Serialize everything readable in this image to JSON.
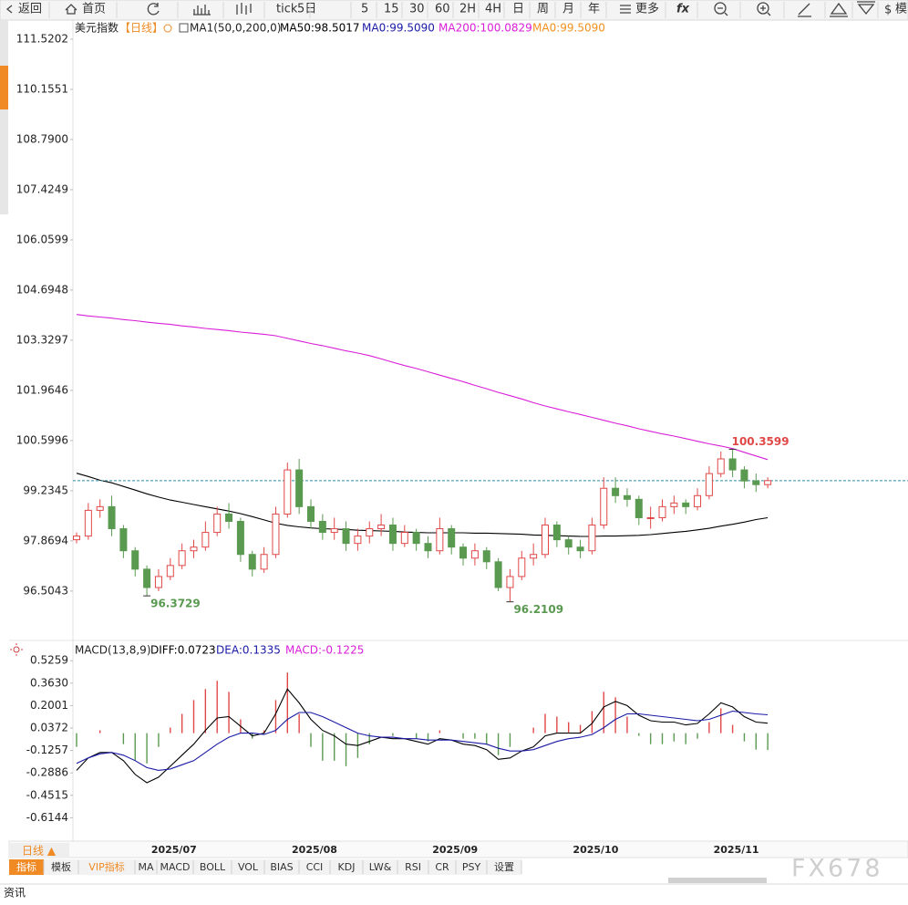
{
  "toolbar": {
    "items": [
      "返回",
      "首页",
      "tick",
      "5日",
      "5",
      "15",
      "30",
      "60",
      "2H",
      "4H",
      "日",
      "周",
      "月",
      "年",
      "更多",
      "fx",
      "模"
    ]
  },
  "chart_data": [
    {
      "type": "candlestick",
      "title": "美元指数",
      "period": "【日线】",
      "indicator": "MA1(50,0,200,0)",
      "legend": [
        {
          "label": "MA50:98.5017",
          "color": "#000000"
        },
        {
          "label": "MA0:99.5090",
          "color": "#1a1aa6"
        },
        {
          "label": "MA200:100.0829",
          "color": "#d81ed8"
        },
        {
          "label": "MA0:99.5090",
          "color": "#f0901e"
        }
      ],
      "categories": [
        null,
        null,
        null,
        null,
        null,
        null,
        null,
        null,
        "2025/07",
        null,
        null,
        null,
        null,
        null,
        null,
        null,
        null,
        null,
        null,
        null,
        "2025/08",
        null,
        null,
        null,
        null,
        null,
        null,
        null,
        null,
        null,
        null,
        null,
        "2025/09",
        null,
        null,
        null,
        null,
        null,
        null,
        null,
        null,
        null,
        null,
        null,
        "2025/10",
        null,
        null,
        null,
        null,
        null,
        null,
        null,
        null,
        null,
        null,
        null,
        "2025/11",
        null,
        null,
        null
      ],
      "ohlc": [
        [
          97.9,
          98.1,
          97.8,
          98.0
        ],
        [
          98.0,
          98.9,
          97.9,
          98.7
        ],
        [
          98.7,
          99.0,
          98.5,
          98.8
        ],
        [
          98.8,
          99.1,
          98.0,
          98.2
        ],
        [
          98.2,
          98.3,
          97.4,
          97.6
        ],
        [
          97.6,
          97.7,
          96.9,
          97.1
        ],
        [
          97.1,
          97.2,
          96.3729,
          96.6
        ],
        [
          96.6,
          97.1,
          96.5,
          96.9
        ],
        [
          96.9,
          97.4,
          96.8,
          97.2
        ],
        [
          97.2,
          97.8,
          97.1,
          97.6
        ],
        [
          97.6,
          97.9,
          97.4,
          97.7
        ],
        [
          97.7,
          98.4,
          97.6,
          98.1
        ],
        [
          98.1,
          98.8,
          98.0,
          98.6
        ],
        [
          98.6,
          98.9,
          98.2,
          98.4
        ],
        [
          98.4,
          98.5,
          97.3,
          97.5
        ],
        [
          97.5,
          97.6,
          96.9,
          97.1
        ],
        [
          97.1,
          97.7,
          97.0,
          97.5
        ],
        [
          97.5,
          98.8,
          97.4,
          98.6
        ],
        [
          98.6,
          100.0,
          98.5,
          99.8
        ],
        [
          99.8,
          100.1,
          98.6,
          98.8
        ],
        [
          98.8,
          99.0,
          98.2,
          98.4
        ],
        [
          98.4,
          98.6,
          97.9,
          98.1
        ],
        [
          98.1,
          98.5,
          97.9,
          98.2
        ],
        [
          98.2,
          98.4,
          97.6,
          97.8
        ],
        [
          97.8,
          98.2,
          97.6,
          98.0
        ],
        [
          98.0,
          98.4,
          97.8,
          98.2
        ],
        [
          98.2,
          98.6,
          98.0,
          98.3
        ],
        [
          98.3,
          98.5,
          97.6,
          97.8
        ],
        [
          97.8,
          98.3,
          97.7,
          98.1
        ],
        [
          98.1,
          98.2,
          97.6,
          97.8
        ],
        [
          97.8,
          98.0,
          97.4,
          97.6
        ],
        [
          97.6,
          98.5,
          97.5,
          98.2
        ],
        [
          98.2,
          98.3,
          97.5,
          97.7
        ],
        [
          97.7,
          97.8,
          97.2,
          97.4
        ],
        [
          97.4,
          97.8,
          97.2,
          97.6
        ],
        [
          97.6,
          97.7,
          97.1,
          97.3
        ],
        [
          97.3,
          97.4,
          96.5,
          96.6
        ],
        [
          96.6,
          97.1,
          96.2109,
          96.9
        ],
        [
          96.9,
          97.6,
          96.8,
          97.4
        ],
        [
          97.4,
          97.8,
          97.2,
          97.5
        ],
        [
          97.5,
          98.5,
          97.4,
          98.3
        ],
        [
          98.3,
          98.4,
          97.7,
          97.9
        ],
        [
          97.9,
          98.0,
          97.5,
          97.7
        ],
        [
          97.7,
          97.9,
          97.4,
          97.6
        ],
        [
          97.6,
          98.5,
          97.5,
          98.3
        ],
        [
          98.3,
          99.6,
          98.2,
          99.3
        ],
        [
          99.3,
          99.6,
          98.9,
          99.1
        ],
        [
          99.1,
          99.3,
          98.8,
          99.0
        ],
        [
          99.0,
          99.1,
          98.3,
          98.5
        ],
        [
          98.5,
          98.8,
          98.2,
          98.5
        ],
        [
          98.5,
          99.0,
          98.4,
          98.8
        ],
        [
          98.8,
          99.1,
          98.6,
          98.9
        ],
        [
          98.9,
          99.0,
          98.6,
          98.8
        ],
        [
          98.8,
          99.3,
          98.7,
          99.1
        ],
        [
          99.1,
          99.9,
          99.0,
          99.7
        ],
        [
          99.7,
          100.3,
          99.6,
          100.1
        ],
        [
          100.1,
          100.3599,
          99.6,
          99.8
        ],
        [
          99.8,
          99.9,
          99.3,
          99.5
        ],
        [
          99.5,
          99.7,
          99.2,
          99.4
        ],
        [
          99.4,
          99.6,
          99.3,
          99.509
        ]
      ],
      "up_color": "#e04848",
      "down_color": "#5a9a50",
      "last_line_color": "#2a8fa0",
      "series": [
        {
          "color": "#000000",
          "values": [
            99.71,
            99.62,
            99.52,
            99.45,
            99.35,
            99.25,
            99.15,
            99.06,
            98.98,
            98.92,
            98.86,
            98.8,
            98.74,
            98.68,
            98.61,
            98.53,
            98.44,
            98.35,
            98.29,
            98.25,
            98.22,
            98.2,
            98.19,
            98.18,
            98.16,
            98.15,
            98.14,
            98.13,
            98.11,
            98.1,
            98.09,
            98.09,
            98.09,
            98.09,
            98.08,
            98.08,
            98.07,
            98.06,
            98.05,
            98.03,
            98.02,
            98.01,
            98.0,
            97.99,
            97.99,
            98.0,
            98.0,
            98.01,
            98.02,
            98.04,
            98.07,
            98.1,
            98.13,
            98.17,
            98.21,
            98.27,
            98.32,
            98.38,
            98.45,
            98.5
          ]
        },
        {
          "color": "#d81ed8",
          "values": [
            104.03,
            103.99,
            103.96,
            103.93,
            103.89,
            103.86,
            103.82,
            103.79,
            103.76,
            103.72,
            103.69,
            103.65,
            103.62,
            103.59,
            103.55,
            103.52,
            103.49,
            103.45,
            103.38,
            103.31,
            103.24,
            103.18,
            103.11,
            103.04,
            102.98,
            102.91,
            102.82,
            102.73,
            102.64,
            102.56,
            102.47,
            102.38,
            102.29,
            102.2,
            102.1,
            102.01,
            101.91,
            101.82,
            101.73,
            101.63,
            101.54,
            101.46,
            101.38,
            101.31,
            101.23,
            101.15,
            101.07,
            101.0,
            100.92,
            100.85,
            100.78,
            100.72,
            100.65,
            100.58,
            100.51,
            100.45,
            100.38,
            100.28,
            100.18,
            100.08
          ]
        }
      ],
      "ylim": [
        95.21,
        112.04
      ],
      "yticks": [
        111.5202,
        110.1551,
        {
          "value": 108.79,
          "label": "108.7900"
        },
        107.4249,
        106.0599,
        104.6948,
        103.3297,
        101.9646,
        100.5996,
        99.2345,
        97.8694,
        96.5043
      ]
    },
    {
      "type": "macd",
      "title": "MACD(13,8,9)",
      "series": [
        {
          "name": "DIFF:0.0723",
          "color": "#000000",
          "values": [
            -0.27,
            -0.18,
            -0.14,
            -0.14,
            -0.2,
            -0.3,
            -0.36,
            -0.32,
            -0.24,
            -0.16,
            -0.08,
            0.02,
            0.11,
            0.12,
            0.05,
            -0.02,
            0.0,
            0.14,
            0.32,
            0.22,
            0.1,
            0.02,
            -0.02,
            -0.08,
            -0.09,
            -0.06,
            -0.03,
            -0.04,
            -0.04,
            -0.06,
            -0.08,
            -0.04,
            -0.05,
            -0.08,
            -0.09,
            -0.12,
            -0.19,
            -0.18,
            -0.13,
            -0.1,
            -0.02,
            0.0,
            0.0,
            0.0,
            0.07,
            0.19,
            0.23,
            0.2,
            0.13,
            0.09,
            0.08,
            0.08,
            0.06,
            0.07,
            0.14,
            0.22,
            0.19,
            0.12,
            0.08,
            0.0723
          ]
        },
        {
          "name": "DEA:0.1335",
          "color": "#1a1aa6",
          "values": [
            -0.22,
            -0.18,
            -0.15,
            -0.14,
            -0.16,
            -0.2,
            -0.25,
            -0.27,
            -0.26,
            -0.23,
            -0.2,
            -0.14,
            -0.08,
            -0.03,
            0.0,
            0.0,
            -0.01,
            0.02,
            0.1,
            0.15,
            0.15,
            0.12,
            0.08,
            0.04,
            0.0,
            -0.02,
            -0.03,
            -0.03,
            -0.04,
            -0.04,
            -0.05,
            -0.05,
            -0.05,
            -0.06,
            -0.07,
            -0.08,
            -0.11,
            -0.13,
            -0.13,
            -0.12,
            -0.09,
            -0.06,
            -0.04,
            -0.03,
            -0.01,
            0.04,
            0.1,
            0.14,
            0.14,
            0.13,
            0.12,
            0.11,
            0.1,
            0.09,
            0.1,
            0.13,
            0.16,
            0.15,
            0.14,
            0.1335
          ]
        }
      ],
      "histogram": {
        "name": "MACD:-0.1225",
        "color": "#d81ed8",
        "up_color": "#e04848",
        "down_color": "#5a9a50",
        "values": [
          -0.1,
          0.0,
          0.02,
          0.0,
          -0.08,
          -0.2,
          -0.22,
          -0.1,
          0.04,
          0.14,
          0.24,
          0.32,
          0.38,
          0.3,
          0.1,
          -0.04,
          0.02,
          0.24,
          0.44,
          0.14,
          -0.1,
          -0.2,
          -0.2,
          -0.24,
          -0.18,
          -0.08,
          0.0,
          -0.02,
          0.0,
          -0.04,
          -0.06,
          0.02,
          0.0,
          -0.04,
          -0.04,
          -0.08,
          -0.16,
          -0.1,
          0.0,
          0.04,
          0.14,
          0.12,
          0.08,
          0.06,
          0.16,
          0.3,
          0.26,
          0.12,
          -0.02,
          -0.08,
          -0.08,
          -0.06,
          -0.08,
          -0.04,
          0.08,
          0.18,
          0.06,
          -0.06,
          -0.12,
          -0.1225
        ]
      },
      "ylim": [
        -0.784,
        0.567
      ],
      "yticks": [
        0.5259,
        {
          "value": 0.363,
          "label": "0.3630"
        },
        0.2001,
        0.0372,
        -0.1257,
        -0.2886,
        -0.4515,
        -0.6144
      ]
    }
  ],
  "period_button": "日线 ▲",
  "tabs": [
    "指标",
    "模板",
    "VIP指标",
    "MA",
    "MACD",
    "BOLL",
    "VOL",
    "BIAS",
    "CCI",
    "KDJ",
    "LW&",
    "RSI",
    "CR",
    "PSY",
    "设置"
  ],
  "footer": {
    "tab": "资讯",
    "watermark": "FX678"
  }
}
